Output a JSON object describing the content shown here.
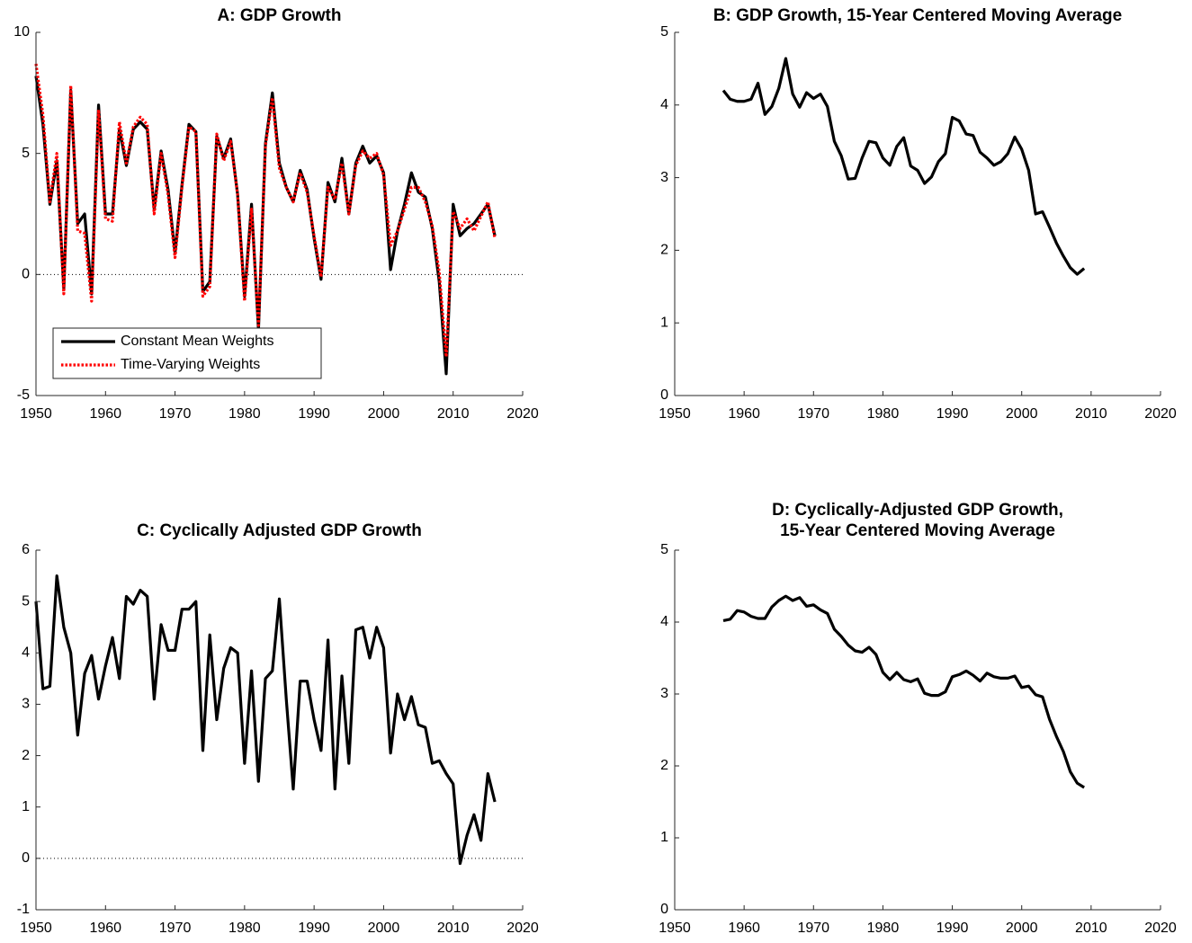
{
  "chart_data": [
    {
      "type": "line",
      "title": "A: GDP Growth",
      "x": [
        1950,
        1951,
        1952,
        1953,
        1954,
        1955,
        1956,
        1957,
        1958,
        1959,
        1960,
        1961,
        1962,
        1963,
        1964,
        1965,
        1966,
        1967,
        1968,
        1969,
        1970,
        1971,
        1972,
        1973,
        1974,
        1975,
        1976,
        1977,
        1978,
        1979,
        1980,
        1981,
        1982,
        1983,
        1984,
        1985,
        1986,
        1987,
        1988,
        1989,
        1990,
        1991,
        1992,
        1993,
        1994,
        1995,
        1996,
        1997,
        1998,
        1999,
        2000,
        2001,
        2002,
        2003,
        2004,
        2005,
        2006,
        2007,
        2008,
        2009,
        2010,
        2011,
        2012,
        2013,
        2014,
        2015,
        2016
      ],
      "series": [
        {
          "name": "Constant Mean Weights",
          "color": "#000000",
          "style": "solid",
          "values": [
            8.2,
            6.2,
            2.9,
            4.7,
            -0.6,
            7.6,
            2.1,
            2.5,
            -0.8,
            7.0,
            2.5,
            2.5,
            6.0,
            4.5,
            6.0,
            6.3,
            6.0,
            2.7,
            5.1,
            3.5,
            0.9,
            3.7,
            6.2,
            5.9,
            -0.7,
            -0.3,
            5.7,
            4.8,
            5.6,
            3.3,
            -0.9,
            2.9,
            -2.3,
            5.4,
            7.5,
            4.6,
            3.6,
            3.0,
            4.3,
            3.5,
            1.5,
            -0.2,
            3.8,
            3.0,
            4.8,
            2.5,
            4.6,
            5.3,
            4.6,
            4.9,
            4.2,
            0.2,
            1.8,
            2.9,
            4.2,
            3.4,
            3.2,
            1.9,
            -0.3,
            -4.1,
            2.9,
            1.6,
            1.9,
            2.1,
            2.5,
            2.9,
            1.6
          ]
        },
        {
          "name": "Time-Varying Weights",
          "color": "#ff0000",
          "style": "dotted",
          "values": [
            8.7,
            6.6,
            3.0,
            5.0,
            -0.8,
            7.8,
            1.8,
            1.7,
            -1.1,
            6.8,
            2.3,
            2.2,
            6.3,
            4.6,
            6.1,
            6.5,
            6.2,
            2.5,
            5.0,
            3.3,
            0.7,
            3.6,
            6.1,
            5.9,
            -0.9,
            -0.5,
            5.8,
            4.7,
            5.5,
            3.3,
            -1.1,
            2.7,
            -2.1,
            5.3,
            7.3,
            4.4,
            3.6,
            3.0,
            4.2,
            3.4,
            1.6,
            -0.1,
            3.6,
            3.1,
            4.6,
            2.5,
            4.5,
            5.1,
            4.8,
            5.0,
            4.1,
            1.2,
            1.8,
            2.7,
            3.6,
            3.6,
            3.0,
            2.0,
            0.1,
            -3.4,
            2.6,
            1.9,
            2.3,
            1.8,
            2.4,
            3.0,
            1.5
          ]
        }
      ],
      "xlim": [
        1950,
        2020
      ],
      "xticks": [
        1950,
        1960,
        1970,
        1980,
        1990,
        2000,
        2010,
        2020
      ],
      "ylim": [
        -5,
        10
      ],
      "yticks": [
        -5,
        0,
        5,
        10
      ],
      "hline": 0,
      "legend": "lower left"
    },
    {
      "type": "line",
      "title": "B: GDP Growth, 15-Year Centered Moving Average",
      "x": [
        1957,
        1958,
        1959,
        1960,
        1961,
        1962,
        1963,
        1964,
        1965,
        1966,
        1967,
        1968,
        1969,
        1970,
        1971,
        1972,
        1973,
        1974,
        1975,
        1976,
        1977,
        1978,
        1979,
        1980,
        1981,
        1982,
        1983,
        1984,
        1985,
        1986,
        1987,
        1988,
        1989,
        1990,
        1991,
        1992,
        1993,
        1994,
        1995,
        1996,
        1997,
        1998,
        1999,
        2000,
        2001,
        2002,
        2003,
        2004,
        2005,
        2006,
        2007,
        2008,
        2009
      ],
      "series": [
        {
          "color": "#000000",
          "style": "solid",
          "values": [
            4.2,
            4.08,
            4.05,
            4.05,
            4.08,
            4.3,
            3.87,
            3.98,
            4.23,
            4.64,
            4.15,
            3.97,
            4.17,
            4.09,
            4.15,
            3.98,
            3.5,
            3.3,
            2.98,
            2.99,
            3.27,
            3.5,
            3.48,
            3.27,
            3.17,
            3.43,
            3.55,
            3.16,
            3.1,
            2.92,
            3.01,
            3.22,
            3.33,
            3.83,
            3.78,
            3.6,
            3.58,
            3.35,
            3.27,
            3.17,
            3.22,
            3.33,
            3.56,
            3.39,
            3.1,
            2.5,
            2.53,
            2.32,
            2.1,
            1.92,
            1.76,
            1.67,
            1.75
          ]
        }
      ],
      "xlim": [
        1950,
        2020
      ],
      "xticks": [
        1950,
        1960,
        1970,
        1980,
        1990,
        2000,
        2010,
        2020
      ],
      "ylim": [
        0,
        5
      ],
      "yticks": [
        0,
        1,
        2,
        3,
        4,
        5
      ],
      "hline": 0
    },
    {
      "type": "line",
      "title": "C: Cyclically Adjusted GDP Growth",
      "x": [
        1950,
        1951,
        1952,
        1953,
        1954,
        1955,
        1956,
        1957,
        1958,
        1959,
        1960,
        1961,
        1962,
        1963,
        1964,
        1965,
        1966,
        1967,
        1968,
        1969,
        1970,
        1971,
        1972,
        1973,
        1974,
        1975,
        1976,
        1977,
        1978,
        1979,
        1980,
        1981,
        1982,
        1983,
        1984,
        1985,
        1986,
        1987,
        1988,
        1989,
        1990,
        1991,
        1992,
        1993,
        1994,
        1995,
        1996,
        1997,
        1998,
        1999,
        2000,
        2001,
        2002,
        2003,
        2004,
        2005,
        2006,
        2007,
        2008,
        2009,
        2010,
        2011,
        2012,
        2013,
        2014,
        2015,
        2016
      ],
      "series": [
        {
          "color": "#000000",
          "style": "solid",
          "values": [
            5.0,
            3.3,
            3.35,
            5.5,
            4.5,
            4.0,
            2.4,
            3.6,
            3.95,
            3.1,
            3.75,
            4.3,
            3.5,
            5.1,
            4.95,
            5.22,
            5.1,
            3.1,
            4.55,
            4.05,
            4.05,
            4.85,
            4.85,
            5.0,
            2.1,
            4.35,
            2.7,
            3.7,
            4.1,
            4.0,
            1.85,
            3.65,
            1.5,
            3.5,
            3.65,
            5.05,
            3.1,
            1.35,
            3.45,
            3.45,
            2.7,
            2.1,
            4.25,
            1.35,
            3.55,
            1.85,
            4.45,
            4.5,
            3.9,
            4.5,
            4.1,
            2.05,
            3.2,
            2.7,
            3.15,
            2.6,
            2.55,
            1.85,
            1.9,
            1.65,
            1.45,
            -0.1,
            0.45,
            0.85,
            0.35,
            1.65,
            1.1
          ]
        }
      ],
      "xlim": [
        1950,
        2020
      ],
      "xticks": [
        1950,
        1960,
        1970,
        1980,
        1990,
        2000,
        2010,
        2020
      ],
      "ylim": [
        -1,
        6
      ],
      "yticks": [
        -1,
        0,
        1,
        2,
        3,
        4,
        5,
        6
      ],
      "hline": 0
    },
    {
      "type": "line",
      "title": [
        "D: Cyclically-Adjusted GDP Growth,",
        "15-Year Centered Moving Average"
      ],
      "x": [
        1957,
        1958,
        1959,
        1960,
        1961,
        1962,
        1963,
        1964,
        1965,
        1966,
        1967,
        1968,
        1969,
        1970,
        1971,
        1972,
        1973,
        1974,
        1975,
        1976,
        1977,
        1978,
        1979,
        1980,
        1981,
        1982,
        1983,
        1984,
        1985,
        1986,
        1987,
        1988,
        1989,
        1990,
        1991,
        1992,
        1993,
        1994,
        1995,
        1996,
        1997,
        1998,
        1999,
        2000,
        2001,
        2002,
        2003,
        2004,
        2005,
        2006,
        2007,
        2008,
        2009
      ],
      "series": [
        {
          "color": "#000000",
          "style": "solid",
          "values": [
            4.02,
            4.04,
            4.16,
            4.14,
            4.08,
            4.05,
            4.05,
            4.21,
            4.3,
            4.36,
            4.3,
            4.34,
            4.22,
            4.24,
            4.17,
            4.12,
            3.9,
            3.8,
            3.68,
            3.6,
            3.58,
            3.65,
            3.55,
            3.3,
            3.2,
            3.3,
            3.2,
            3.17,
            3.21,
            3.01,
            2.98,
            2.98,
            3.03,
            3.24,
            3.27,
            3.32,
            3.26,
            3.18,
            3.29,
            3.24,
            3.22,
            3.22,
            3.25,
            3.09,
            3.11,
            2.99,
            2.96,
            2.65,
            2.41,
            2.2,
            1.92,
            1.76,
            1.7
          ]
        }
      ],
      "xlim": [
        1950,
        2020
      ],
      "xticks": [
        1950,
        1960,
        1970,
        1980,
        1990,
        2000,
        2010,
        2020
      ],
      "ylim": [
        0,
        5
      ],
      "yticks": [
        0,
        1,
        2,
        3,
        4,
        5
      ],
      "hline": 0
    }
  ]
}
